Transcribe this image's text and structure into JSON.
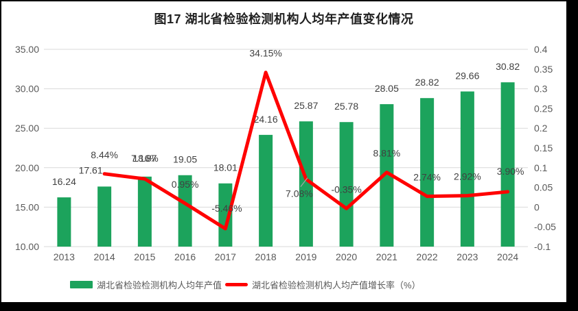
{
  "title": "图17 湖北省检验检测机构人均年产值变化情况",
  "chart_data": {
    "type": "bar+line combo",
    "title": "图17 湖北省检验检测机构人均年产值变化情况",
    "categories": [
      "2013",
      "2014",
      "2015",
      "2016",
      "2017",
      "2018",
      "2019",
      "2020",
      "2021",
      "2022",
      "2023",
      "2024"
    ],
    "series": [
      {
        "name": "湖北省检验检测机构人均年产值",
        "type": "bar",
        "axis": "left",
        "values": [
          16.24,
          17.61,
          18.87,
          19.05,
          18.01,
          24.16,
          25.87,
          25.78,
          28.05,
          28.82,
          29.66,
          30.82
        ],
        "labels": [
          "16.24",
          "17.61",
          "18.87",
          "19.05",
          "18.01",
          "24.16",
          "25.87",
          "25.78",
          "28.05",
          "28.82",
          "29.66",
          "30.82"
        ]
      },
      {
        "name": "湖北省检验检测机构人均产值增长率（%）",
        "type": "line",
        "axis": "right",
        "values": [
          null,
          0.0844,
          0.0716,
          0.0095,
          -0.0546,
          0.3415,
          0.0708,
          -0.0035,
          0.0881,
          0.0274,
          0.0292,
          0.039
        ],
        "labels": [
          null,
          "8.44%",
          "7.16%",
          "0.95%",
          "-5.46%",
          "34.15%",
          "7.08%",
          "-0.35%",
          "8.81%",
          "2.74%",
          "2.92%",
          "3.90%"
        ]
      }
    ],
    "left_axis": {
      "min": 10,
      "max": 35,
      "step": 5,
      "tick_labels": [
        "35.00",
        "30.00",
        "25.00",
        "20.00",
        "15.00",
        "10.00"
      ]
    },
    "right_axis": {
      "min": -0.1,
      "max": 0.4,
      "step": 0.05,
      "tick_labels": [
        "0.4",
        "0.35",
        "0.3",
        "0.25",
        "0.2",
        "0.15",
        "0.1",
        "0.05",
        "0",
        "-0.05",
        "-0.1"
      ]
    },
    "grid": true,
    "legend_position": "bottom"
  },
  "legend": {
    "items": [
      {
        "label": "湖北省检验检测机构人均年产值",
        "swatch": "bar"
      },
      {
        "label": "湖北省检验检测机构人均产值增长率（%）",
        "swatch": "line"
      }
    ]
  },
  "colors": {
    "bar": "#1CA35C",
    "line": "#FF0000",
    "grid": "#D9D9D9",
    "axis_text": "#595959",
    "label_text": "#404040",
    "leader": "#A6A6A6"
  }
}
